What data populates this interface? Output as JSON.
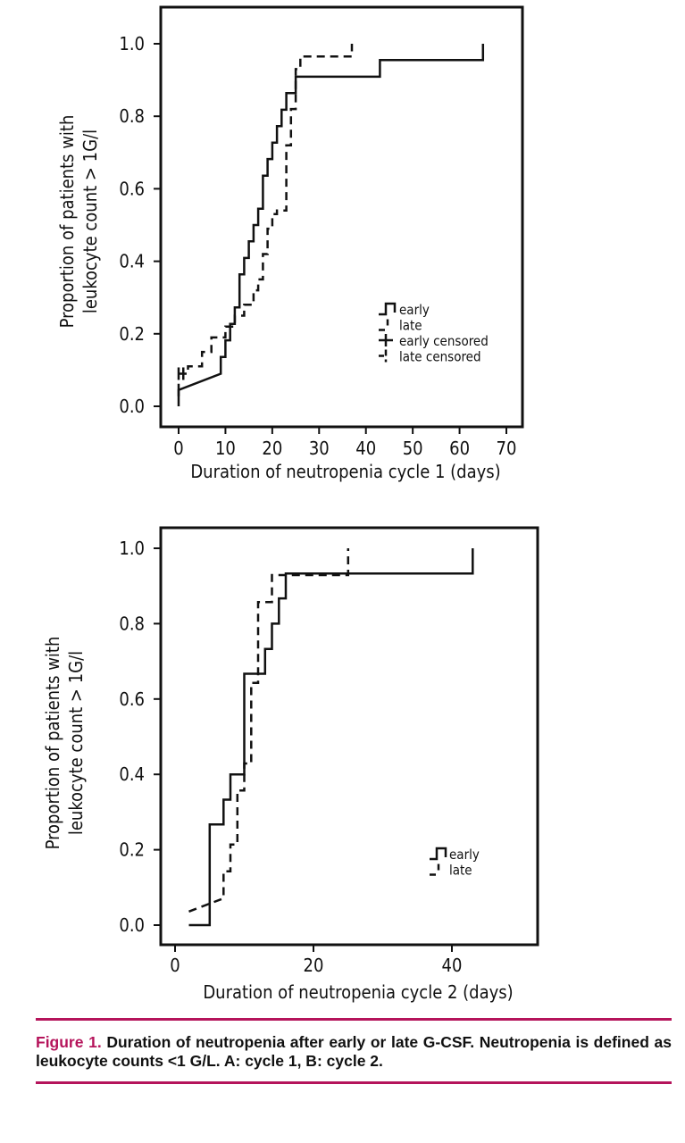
{
  "chart_data": [
    {
      "type": "line",
      "step": true,
      "xlabel": "Duration of neutropenia cycle 1 (days)",
      "ylabel_lines": [
        "Proportion of patients with",
        "leukocyte count > 1G/l"
      ],
      "xlim": [
        -3,
        72
      ],
      "ylim": [
        0,
        1.0
      ],
      "xticks": [
        0,
        10,
        20,
        30,
        40,
        50,
        60,
        70
      ],
      "yticks": [
        "0.0",
        "0.2",
        "0.4",
        "0.6",
        "0.8",
        "1.0"
      ],
      "legend": [
        {
          "label": "early",
          "style": "solid"
        },
        {
          "label": "late",
          "style": "dashed"
        },
        {
          "label": "early censored",
          "style": "censor-solid"
        },
        {
          "label": "late censored",
          "style": "censor-dashed"
        }
      ],
      "legend_position": "middle-right",
      "series": [
        {
          "id": "early",
          "dashed": false,
          "x": [
            0,
            0,
            9,
            9,
            10,
            10,
            11,
            11,
            12,
            12,
            13,
            13,
            14,
            14,
            15,
            15,
            16,
            16,
            17,
            17,
            18,
            18,
            19,
            19,
            20,
            20,
            21,
            21,
            22,
            22,
            23,
            23,
            24,
            24,
            25,
            25,
            26,
            26,
            27,
            27,
            43,
            43,
            65,
            65
          ],
          "y": [
            0.0,
            0.045,
            0.09,
            0.136,
            0.136,
            0.182,
            0.182,
            0.227,
            0.227,
            0.273,
            0.273,
            0.364,
            0.364,
            0.409,
            0.409,
            0.455,
            0.455,
            0.5,
            0.5,
            0.545,
            0.545,
            0.636,
            0.636,
            0.682,
            0.682,
            0.727,
            0.727,
            0.773,
            0.773,
            0.818,
            0.818,
            0.864,
            0.864,
            0.864,
            0.864,
            0.909,
            0.909,
            0.909,
            0.909,
            0.909,
            0.909,
            0.955,
            0.955,
            1.0
          ]
        },
        {
          "id": "late",
          "dashed": true,
          "x": [
            0,
            2,
            2,
            5,
            5,
            7,
            7,
            10,
            10,
            12,
            12,
            14,
            14,
            16,
            16,
            17,
            17,
            18,
            18,
            19,
            19,
            20,
            20,
            21,
            21,
            23,
            23,
            24,
            24,
            25,
            25,
            26,
            26,
            37,
            37
          ],
          "y": [
            0.09,
            0.09,
            0.11,
            0.11,
            0.15,
            0.15,
            0.19,
            0.19,
            0.22,
            0.22,
            0.25,
            0.25,
            0.28,
            0.28,
            0.32,
            0.32,
            0.35,
            0.35,
            0.42,
            0.42,
            0.49,
            0.49,
            0.53,
            0.53,
            0.54,
            0.54,
            0.72,
            0.72,
            0.82,
            0.82,
            0.93,
            0.93,
            0.965,
            0.965,
            1.0
          ]
        }
      ],
      "censor_marks": [
        {
          "series": "early",
          "x": 0,
          "y": 0.045
        },
        {
          "series": "late",
          "x": 0,
          "y": 0.09
        },
        {
          "series": "late",
          "x": 1,
          "y": 0.09
        }
      ]
    },
    {
      "type": "line",
      "step": true,
      "xlabel": "Duration of neutropenia cycle 2 (days)",
      "ylabel_lines": [
        "Proportion of patients with",
        "leukocyte count > 1G/l"
      ],
      "xlim": [
        -2,
        50
      ],
      "ylim": [
        0,
        1.0
      ],
      "xticks": [
        0,
        20,
        40
      ],
      "yticks": [
        "0.0",
        "0.2",
        "0.4",
        "0.6",
        "0.8",
        "1.0"
      ],
      "legend": [
        {
          "label": "early",
          "style": "solid"
        },
        {
          "label": "late",
          "style": "dashed"
        }
      ],
      "legend_position": "lower-right",
      "series": [
        {
          "id": "early",
          "dashed": false,
          "x": [
            2,
            5,
            5,
            7,
            7,
            8,
            8,
            10,
            10,
            13,
            13,
            14,
            14,
            15,
            15,
            16,
            16,
            17,
            17,
            43,
            43
          ],
          "y": [
            0.0,
            0.0,
            0.267,
            0.267,
            0.333,
            0.333,
            0.4,
            0.4,
            0.667,
            0.667,
            0.733,
            0.733,
            0.8,
            0.8,
            0.867,
            0.867,
            0.933,
            0.933,
            0.933,
            0.933,
            1.0
          ]
        },
        {
          "id": "late",
          "dashed": true,
          "x": [
            2,
            7,
            7,
            8,
            8,
            9,
            9,
            10,
            10,
            11,
            11,
            12,
            12,
            14,
            14,
            15,
            15,
            18,
            18,
            25,
            25
          ],
          "y": [
            0.036,
            0.071,
            0.143,
            0.143,
            0.214,
            0.214,
            0.357,
            0.357,
            0.429,
            0.429,
            0.643,
            0.643,
            0.857,
            0.857,
            0.929,
            0.929,
            0.929,
            0.929,
            0.929,
            0.929,
            1.0
          ]
        }
      ],
      "censor_marks": []
    }
  ],
  "caption": {
    "label": "Figure 1.",
    "text": "Duration of neutropenia after early or late G-CSF. Neutropenia is defined as leukocyte counts <1 G/L. A: cycle 1, B: cycle 2."
  }
}
